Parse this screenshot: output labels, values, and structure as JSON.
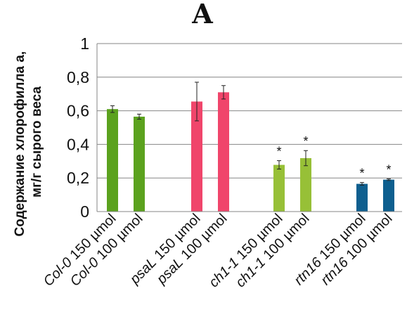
{
  "chart_data": {
    "type": "bar",
    "panel_label": "A",
    "ylabel_lines": [
      "Содержание хлорофилла а,",
      "мг/г сырого веса"
    ],
    "ylim": [
      0,
      1
    ],
    "yticks": [
      "0",
      "0,2",
      "0,4",
      "0,6",
      "0,8",
      "1"
    ],
    "grid": true,
    "categories": [
      {
        "genotype": "Col-0",
        "condition": "150 µmol"
      },
      {
        "genotype": "Col-0",
        "condition": "100 µmol"
      },
      {
        "genotype": "psaL",
        "condition": "150 µmol"
      },
      {
        "genotype": "psaL",
        "condition": "100 µmol"
      },
      {
        "genotype": "ch1-1",
        "condition": "150 µmol"
      },
      {
        "genotype": "ch1-1",
        "condition": "100 µmol"
      },
      {
        "genotype": "rtn16",
        "condition": "150 µmol"
      },
      {
        "genotype": "rtn16",
        "condition": "100 µmol"
      }
    ],
    "values": [
      0.61,
      0.565,
      0.655,
      0.71,
      0.278,
      0.318,
      0.165,
      0.19
    ],
    "errors": [
      0.02,
      0.015,
      0.115,
      0.04,
      0.025,
      0.045,
      0.008,
      0.005
    ],
    "significance": [
      "",
      "",
      "",
      "",
      "*",
      "*",
      "*",
      "*"
    ],
    "colors": [
      "#5ba21e",
      "#5ba21e",
      "#f0456b",
      "#f0456b",
      "#97c037",
      "#97c037",
      "#0e5f8f",
      "#0e5f8f"
    ]
  }
}
